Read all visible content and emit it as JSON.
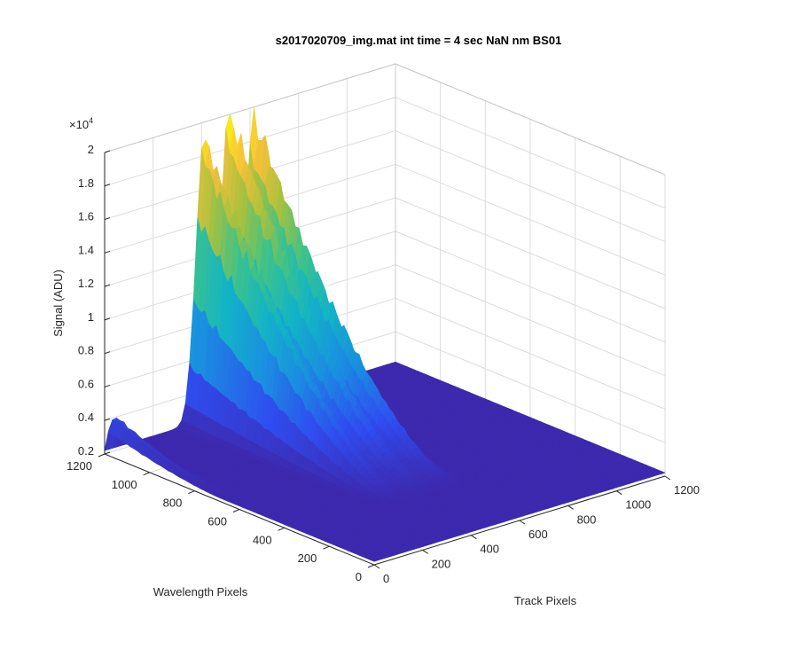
{
  "chart_data": {
    "type": "surface",
    "title": "s2017020709_img.mat int time = 4 sec  NaN nm BS01",
    "xlabel": "Track Pixels",
    "ylabel": "Wavelength Pixels",
    "zlabel": "Signal (ADU)",
    "z_exponent_label": "×10",
    "z_exponent_sup": "4",
    "xlim": [
      0,
      1200
    ],
    "ylim": [
      0,
      1200
    ],
    "zlim": [
      2000,
      20000
    ],
    "x_ticks": [
      "0",
      "200",
      "400",
      "600",
      "800",
      "1000",
      "1200"
    ],
    "y_ticks": [
      "0",
      "200",
      "400",
      "600",
      "800",
      "1000",
      "1200"
    ],
    "z_ticks": [
      "0.2",
      "0.4",
      "0.6",
      "0.8",
      "1",
      "1.2",
      "1.4",
      "1.6",
      "1.8",
      "2"
    ],
    "grid": true,
    "colormap": [
      "#3e26a8",
      "#2f4cf0",
      "#1a8fe0",
      "#12b4c6",
      "#3dc28a",
      "#a9c13d",
      "#f6c13a",
      "#f9fb0e"
    ],
    "background_level": 2200,
    "ridges": [
      {
        "x": 25,
        "y_start": 1190,
        "y_end": 680,
        "peak": 4300
      },
      {
        "x": 410,
        "y_start": 1200,
        "y_end": 300,
        "peak": 18800
      },
      {
        "x": 515,
        "y_start": 1200,
        "y_end": 300,
        "peak": 19700
      },
      {
        "x": 620,
        "y_start": 1200,
        "y_end": 300,
        "peak": 19200
      }
    ]
  }
}
